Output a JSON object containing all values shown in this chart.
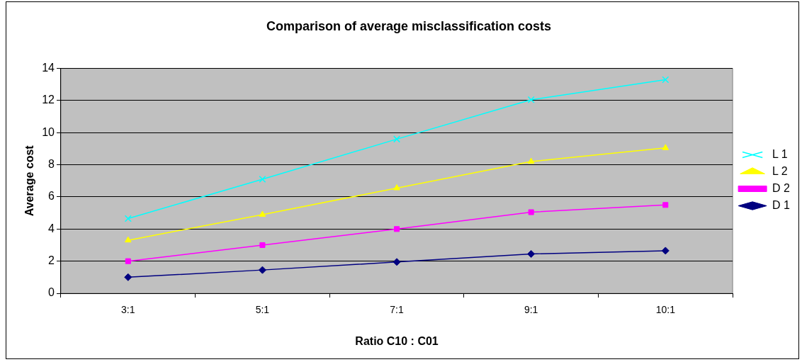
{
  "chart_data": {
    "type": "line",
    "title": "Comparison of average misclassification costs",
    "xlabel": "Ratio C10 : C01",
    "ylabel": "Average cost",
    "categories": [
      "3:1",
      "5:1",
      "7:1",
      "9:1",
      "10:1"
    ],
    "series": [
      {
        "name": "L 1",
        "color": "#00ffff",
        "marker": "cross",
        "values": [
          4.65,
          7.1,
          9.6,
          12.05,
          13.3
        ]
      },
      {
        "name": "L 2",
        "color": "#ffff00",
        "marker": "triangle",
        "values": [
          3.3,
          4.9,
          6.55,
          8.2,
          9.05
        ]
      },
      {
        "name": "D 2",
        "color": "#ff00ff",
        "marker": "square",
        "values": [
          2.0,
          3.0,
          4.0,
          5.05,
          5.5
        ]
      },
      {
        "name": "D 1",
        "color": "#000080",
        "marker": "diamond",
        "values": [
          1.0,
          1.45,
          1.95,
          2.45,
          2.65
        ]
      }
    ],
    "ylim": [
      0,
      14
    ],
    "yticks": [
      0,
      2,
      4,
      6,
      8,
      10,
      12,
      14
    ],
    "grid": "y",
    "legend": "right"
  }
}
